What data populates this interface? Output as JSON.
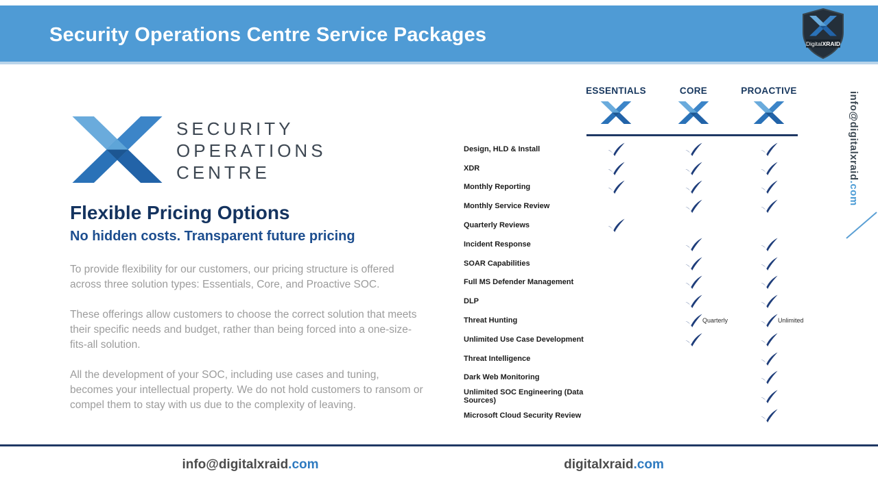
{
  "header": {
    "title": "Security Operations Centre Service Packages",
    "logo": {
      "digital": "Digital",
      "xraid": "XRAID"
    }
  },
  "left": {
    "logo_lines": {
      "l1": "SECURITY",
      "l2": "OPERATIONS",
      "l3": "CENTRE"
    },
    "heading": "Flexible Pricing Options",
    "subheading": "No hidden costs. Transparent future pricing",
    "paragraphs": [
      "To provide flexibility for our customers, our pricing structure is offered across three solution types: Essentials, Core, and Proactive SOC.",
      "These offerings allow customers to choose the correct solution that meets their specific needs and budget, rather than being forced into a one-size-fits-all solution.",
      "All the development of your SOC, including use cases and tuning, becomes your intellectual property. We do not hold customers to ransom or compel them to stay with us due to the complexity of leaving."
    ]
  },
  "table": {
    "columns": [
      "ESSENTIALS",
      "CORE",
      "PROACTIVE"
    ],
    "rows": [
      {
        "label": "Design, HLD & Install",
        "checks": [
          true,
          true,
          true
        ],
        "notes": [
          "",
          "",
          ""
        ]
      },
      {
        "label": "XDR",
        "checks": [
          true,
          true,
          true
        ],
        "notes": [
          "",
          "",
          ""
        ]
      },
      {
        "label": "Monthly Reporting",
        "checks": [
          true,
          true,
          true
        ],
        "notes": [
          "",
          "",
          ""
        ]
      },
      {
        "label": "Monthly Service Review",
        "checks": [
          false,
          true,
          true
        ],
        "notes": [
          "",
          "",
          ""
        ]
      },
      {
        "label": "Quarterly Reviews",
        "checks": [
          true,
          false,
          false
        ],
        "notes": [
          "",
          "",
          ""
        ]
      },
      {
        "label": "Incident Response",
        "checks": [
          false,
          true,
          true
        ],
        "notes": [
          "",
          "",
          ""
        ]
      },
      {
        "label": "SOAR Capabilities",
        "checks": [
          false,
          true,
          true
        ],
        "notes": [
          "",
          "",
          ""
        ]
      },
      {
        "label": "Full MS Defender Management",
        "checks": [
          false,
          true,
          true
        ],
        "notes": [
          "",
          "",
          ""
        ]
      },
      {
        "label": "DLP",
        "checks": [
          false,
          true,
          true
        ],
        "notes": [
          "",
          "",
          ""
        ]
      },
      {
        "label": "Threat Hunting",
        "checks": [
          false,
          true,
          true
        ],
        "notes": [
          "",
          "Quarterly",
          "Unlimited"
        ]
      },
      {
        "label": "Unlimited Use Case Development",
        "checks": [
          false,
          true,
          true
        ],
        "notes": [
          "",
          "",
          ""
        ]
      },
      {
        "label": "Threat Intelligence",
        "checks": [
          false,
          false,
          true
        ],
        "notes": [
          "",
          "",
          ""
        ]
      },
      {
        "label": "Dark Web Monitoring",
        "checks": [
          false,
          false,
          true
        ],
        "notes": [
          "",
          "",
          ""
        ]
      },
      {
        "label": "Unlimited SOC Engineering (Data Sources)",
        "checks": [
          false,
          false,
          true
        ],
        "notes": [
          "",
          "",
          ""
        ]
      },
      {
        "label": "Microsoft Cloud Security Review",
        "checks": [
          false,
          false,
          true
        ],
        "notes": [
          "",
          "",
          ""
        ]
      }
    ]
  },
  "side": {
    "email_prefix": "info@digitalxraid",
    "email_suffix": ".com"
  },
  "footer": {
    "email_prefix": "info@digitalxraid",
    "email_suffix": ".com",
    "site_prefix": "digitalxraid",
    "site_suffix": ".com"
  },
  "colors": {
    "header_blue": "#4f9bd5",
    "navy": "#1f3864",
    "check_navy": "#1e3d7a",
    "subtitle_blue": "#1d4e8f",
    "link_blue": "#2e7ac0",
    "body_gray": "#9c9c9c"
  }
}
